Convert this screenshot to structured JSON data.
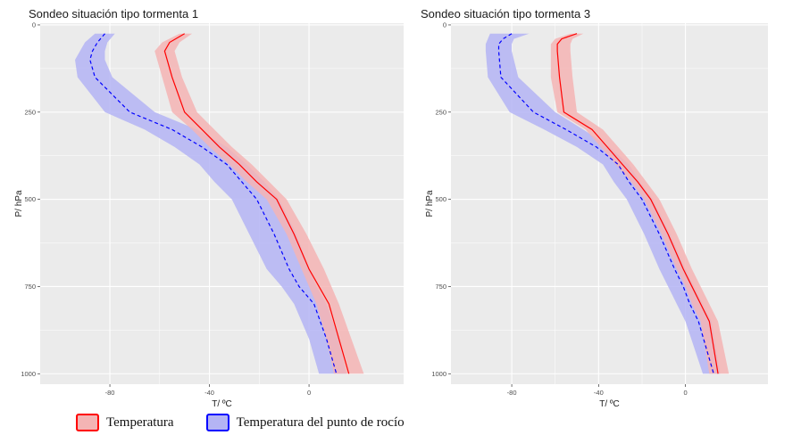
{
  "legend": {
    "temp_label": "Temperatura",
    "dew_label": "Temperatura del punto de rocío"
  },
  "colors": {
    "panel_bg": "#ebebeb",
    "grid": "#ffffff",
    "temp_line": "#ff0000",
    "temp_band": "#f4b4b4",
    "dew_line": "#0000ff",
    "dew_band": "#b4b4f4"
  },
  "chart_data": [
    {
      "type": "line",
      "title": "Sondeo situación tipo tormenta  1",
      "xlabel": "T/ ºC",
      "ylabel": "P/ hPa",
      "xlim": [
        -108,
        38
      ],
      "ylim": [
        1030,
        -5
      ],
      "y_reversed": true,
      "x_ticks": [
        -80,
        -40,
        0
      ],
      "y_ticks": [
        0,
        250,
        500,
        750,
        1000
      ],
      "grid": true,
      "legend_position": "bottom",
      "series": [
        {
          "name": "Temperatura",
          "line_style": "solid",
          "x": [
            -50,
            -56,
            -58,
            -57,
            -55,
            -50,
            -43,
            -36,
            -28,
            -21,
            -13,
            -6,
            0,
            4,
            8,
            12,
            16
          ],
          "y": [
            25,
            50,
            75,
            100,
            150,
            250,
            300,
            350,
            400,
            450,
            500,
            600,
            700,
            750,
            800,
            900,
            1000
          ],
          "lower": [
            -52,
            -59,
            -62,
            -61,
            -59,
            -55,
            -47,
            -40,
            -32,
            -25,
            -17,
            -9,
            -3,
            0,
            3,
            7,
            10
          ],
          "upper": [
            -47,
            -52,
            -54,
            -53,
            -51,
            -45,
            -38,
            -31,
            -23,
            -16,
            -9,
            -1,
            6,
            9,
            12,
            17,
            22
          ]
        },
        {
          "name": "Temperatura del punto de rocío",
          "line_style": "dashed",
          "x": [
            -82,
            -85,
            -87,
            -88,
            -86,
            -72,
            -55,
            -43,
            -33,
            -27,
            -21,
            -14,
            -8,
            -4,
            2,
            7,
            11
          ],
          "y": [
            25,
            50,
            75,
            100,
            150,
            250,
            300,
            350,
            400,
            450,
            500,
            600,
            700,
            750,
            800,
            900,
            1000
          ],
          "lower": [
            -86,
            -90,
            -92,
            -94,
            -93,
            -82,
            -66,
            -54,
            -44,
            -38,
            -31,
            -24,
            -17,
            -11,
            -6,
            0,
            4
          ],
          "upper": [
            -78,
            -81,
            -82,
            -82,
            -79,
            -62,
            -45,
            -33,
            -25,
            -18,
            -12,
            -5,
            0,
            3,
            7,
            12,
            15
          ]
        }
      ]
    },
    {
      "type": "line",
      "title": "Sondeo situación tipo tormenta  3",
      "xlabel": "T/ ºC",
      "ylabel": "P/ hPa",
      "xlim": [
        -108,
        38
      ],
      "ylim": [
        1030,
        -5
      ],
      "y_reversed": true,
      "x_ticks": [
        -80,
        -40,
        0
      ],
      "y_ticks": [
        0,
        250,
        500,
        750,
        1000
      ],
      "grid": true,
      "legend_position": "bottom",
      "series": [
        {
          "name": "Temperatura",
          "line_style": "solid",
          "x": [
            -50,
            -57,
            -59,
            -59,
            -58,
            -56,
            -43,
            -36,
            -29,
            -22,
            -16,
            -8,
            -1,
            3,
            7,
            11,
            15
          ],
          "y": [
            25,
            40,
            55,
            75,
            150,
            250,
            300,
            350,
            400,
            450,
            500,
            600,
            700,
            750,
            800,
            850,
            1000
          ],
          "lower": [
            -53,
            -60,
            -62,
            -62,
            -62,
            -59,
            -46,
            -39,
            -32,
            -25,
            -19,
            -11,
            -4,
            0,
            3,
            7,
            11
          ],
          "upper": [
            -47,
            -52,
            -53,
            -53,
            -52,
            -50,
            -38,
            -31,
            -24,
            -18,
            -12,
            -4,
            3,
            7,
            11,
            15,
            20
          ]
        },
        {
          "name": "Temperatura del punto de rocío",
          "line_style": "dashed",
          "x": [
            -80,
            -84,
            -86,
            -86,
            -85,
            -70,
            -55,
            -41,
            -31,
            -26,
            -20,
            -12,
            -5,
            -1,
            2,
            6,
            13
          ],
          "y": [
            25,
            40,
            55,
            75,
            150,
            250,
            300,
            350,
            400,
            450,
            500,
            600,
            700,
            750,
            800,
            850,
            1000
          ],
          "lower": [
            -90,
            -91,
            -92,
            -92,
            -91,
            -81,
            -65,
            -50,
            -38,
            -33,
            -27,
            -19,
            -12,
            -8,
            -4,
            0,
            8
          ],
          "upper": [
            -72,
            -79,
            -80,
            -80,
            -77,
            -60,
            -47,
            -35,
            -26,
            -21,
            -15,
            -7,
            0,
            4,
            8,
            12,
            16
          ]
        }
      ]
    }
  ]
}
